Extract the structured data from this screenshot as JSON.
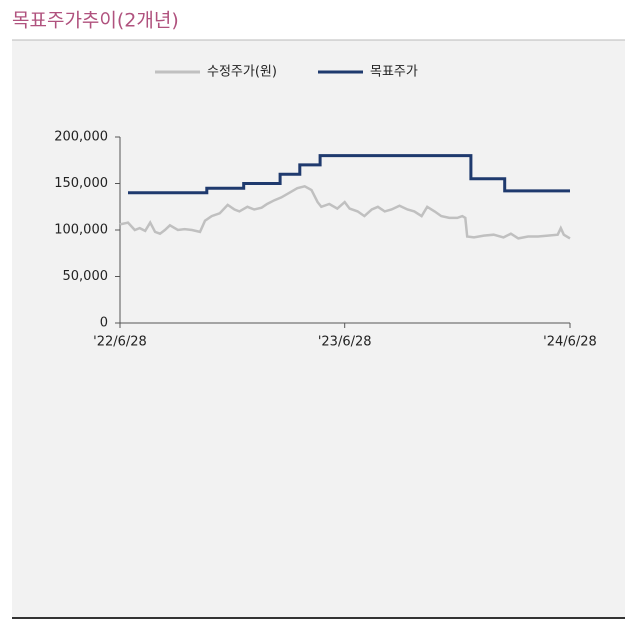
{
  "chart_data": {
    "type": "line",
    "title": "목표주가추이(2개년)",
    "xlim": [
      "2022-06-28",
      "2024-06-28"
    ],
    "xticks": [
      {
        "value": "2022-06-28",
        "label": "'22/6/28"
      },
      {
        "value": "2023-06-28",
        "label": "'23/6/28"
      },
      {
        "value": "2024-06-28",
        "label": "'24/6/28"
      }
    ],
    "ylim": [
      0,
      200000
    ],
    "yticks": [
      0,
      {
        "value": 50000,
        "label": "50,000"
      },
      {
        "value": 100000,
        "label": "100,000"
      },
      {
        "value": 150000,
        "label": "150,000"
      },
      {
        "value": 200000,
        "label": "200,000"
      }
    ],
    "legend": "top",
    "series": [
      {
        "name": "수정주가(원)",
        "color": "#c0c0c0",
        "x": [
          "2022-06-28",
          "2022-07-11",
          "2022-07-22",
          "2022-07-30",
          "2022-08-08",
          "2022-08-16",
          "2022-08-24",
          "2022-09-01",
          "2022-09-09",
          "2022-09-17",
          "2022-09-30",
          "2022-10-11",
          "2022-10-23",
          "2022-11-05",
          "2022-11-13",
          "2022-11-24",
          "2022-12-07",
          "2022-12-20",
          "2022-12-31",
          "2023-01-08",
          "2023-01-21",
          "2023-02-01",
          "2023-02-13",
          "2023-02-22",
          "2023-03-06",
          "2023-03-17",
          "2023-03-30",
          "2023-04-12",
          "2023-04-24",
          "2023-05-05",
          "2023-05-15",
          "2023-05-21",
          "2023-06-03",
          "2023-06-16",
          "2023-06-28",
          "2023-07-06",
          "2023-07-19",
          "2023-07-30",
          "2023-08-11",
          "2023-08-21",
          "2023-09-01",
          "2023-09-12",
          "2023-09-25",
          "2023-10-08",
          "2023-10-19",
          "2023-10-31",
          "2023-11-09",
          "2023-11-21",
          "2023-12-02",
          "2023-12-15",
          "2023-12-28",
          "2024-01-05",
          "2024-01-10",
          "2024-01-13",
          "2024-01-24",
          "2024-02-09",
          "2024-02-25",
          "2024-03-12",
          "2024-03-24",
          "2024-04-05",
          "2024-04-21",
          "2024-05-07",
          "2024-05-23",
          "2024-06-08",
          "2024-06-13",
          "2024-06-18",
          "2024-06-28"
        ],
        "values": [
          106000,
          108000,
          100000,
          102000,
          99000,
          108000,
          98000,
          96000,
          100000,
          105000,
          100000,
          101000,
          100000,
          98000,
          110000,
          115000,
          118000,
          127000,
          122000,
          120000,
          125000,
          122000,
          124000,
          128000,
          132000,
          135000,
          140000,
          145000,
          147000,
          143000,
          130000,
          125000,
          128000,
          123000,
          130000,
          123000,
          120000,
          115000,
          122000,
          125000,
          120000,
          122000,
          126000,
          122000,
          120000,
          115000,
          125000,
          120000,
          115000,
          113000,
          113000,
          115000,
          113000,
          93000,
          92000,
          94000,
          95000,
          92000,
          96000,
          91000,
          93000,
          93000,
          94000,
          95000,
          102000,
          95000,
          91000
        ]
      },
      {
        "name": "목표주가",
        "color": "#1f3a6e",
        "x": [
          "2022-07-11",
          "2022-11-16",
          "2022-11-16",
          "2023-01-15",
          "2023-01-15",
          "2023-03-15",
          "2023-03-15",
          "2023-04-16",
          "2023-04-16",
          "2023-05-19",
          "2023-05-19",
          "2024-01-19",
          "2024-01-19",
          "2024-03-14",
          "2024-03-14",
          "2024-06-28"
        ],
        "values": [
          140000,
          140000,
          145000,
          145000,
          150000,
          150000,
          160000,
          160000,
          170000,
          170000,
          180000,
          180000,
          155000,
          155000,
          142000,
          142000
        ]
      }
    ]
  }
}
